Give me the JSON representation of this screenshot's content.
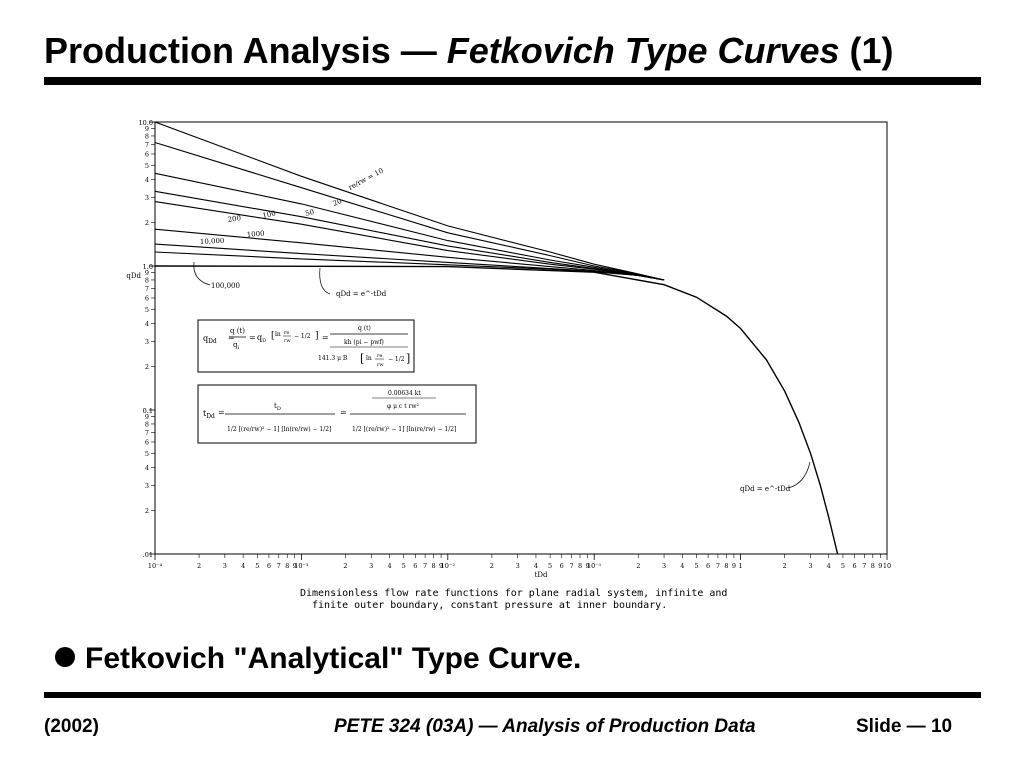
{
  "slide": {
    "title_main": "Production Analysis — ",
    "title_italic": "Fetkovich Type Curves",
    "title_suffix": " (1)",
    "bullet": "Fetkovich \"Analytical\" Type Curve.",
    "footer_left": "(2002)",
    "footer_center": "PETE 324 (03A) — Analysis of Production Data",
    "footer_right": "Slide — 10"
  },
  "figure": {
    "caption_line1": "Dimensionless flow rate functions for plane radial system, infinite and",
    "caption_line2": "finite outer boundary, constant pressure at inner boundary.",
    "eq1": {
      "lhs": "q",
      "lhs_sub": "Dd",
      "q_t": "q (t)",
      "q_i": "q",
      "q_i_sub": "i",
      "q_D": "q",
      "q_D_sub": "D",
      "ln": "ln",
      "re": "re",
      "rw": "rw",
      "minus_half": "− 1/2",
      "num": "q (t)",
      "den": "kh (pi − pwf)",
      "den2": "141.3 μ B"
    },
    "eq2": {
      "lhs": "t",
      "lhs_sub": "Dd",
      "tD": "t",
      "tD_sub": "D",
      "num": "0.00634 kt",
      "den": "φ μ c",
      "den_tail": "t rw²",
      "half": "1/2",
      "re": "re",
      "rw": "rw",
      "ln": "ln",
      "minus_one": "− 1"
    }
  },
  "chart_data": {
    "type": "line",
    "xlabel": "tDd",
    "ylabel": "qDd",
    "xscale": "log",
    "yscale": "log",
    "xlim": [
      0.0001,
      10
    ],
    "ylim": [
      0.01,
      10
    ],
    "x_major_ticks": [
      "10⁻⁴",
      "10⁻³",
      "10⁻²",
      "10⁻¹",
      "1",
      "10"
    ],
    "y_major_ticks": [
      "10.0",
      "1.0",
      "0.1",
      ".01"
    ],
    "minor_tick_labels": [
      "2",
      "3",
      "4",
      "5",
      "6",
      "7",
      "8",
      "9"
    ],
    "series": [
      {
        "name": "re/rw = 10",
        "x": [
          0.0001,
          0.001,
          0.01,
          0.05,
          0.1,
          0.2,
          0.3
        ],
        "y": [
          10,
          4.2,
          1.9,
          1.25,
          1.03,
          0.88,
          0.8
        ]
      },
      {
        "name": "20",
        "x": [
          0.0001,
          0.001,
          0.01,
          0.05,
          0.1,
          0.2,
          0.3
        ],
        "y": [
          7.2,
          3.5,
          1.7,
          1.18,
          1.0,
          0.88,
          0.8
        ]
      },
      {
        "name": "50",
        "x": [
          0.0001,
          0.001,
          0.01,
          0.05,
          0.1,
          0.2,
          0.3
        ],
        "y": [
          4.4,
          2.7,
          1.5,
          1.1,
          0.98,
          0.87,
          0.8
        ]
      },
      {
        "name": "100",
        "x": [
          0.0001,
          0.001,
          0.01,
          0.05,
          0.1,
          0.2,
          0.3
        ],
        "y": [
          3.3,
          2.2,
          1.38,
          1.06,
          0.96,
          0.87,
          0.8
        ]
      },
      {
        "name": "200",
        "x": [
          0.0001,
          0.001,
          0.01,
          0.05,
          0.1,
          0.2,
          0.3
        ],
        "y": [
          2.8,
          1.95,
          1.28,
          1.03,
          0.95,
          0.86,
          0.8
        ]
      },
      {
        "name": "1000",
        "x": [
          0.0001,
          0.001,
          0.01,
          0.05,
          0.1,
          0.2,
          0.3
        ],
        "y": [
          1.8,
          1.45,
          1.15,
          0.99,
          0.93,
          0.86,
          0.8
        ]
      },
      {
        "name": "10,000",
        "x": [
          0.0001,
          0.001,
          0.01,
          0.05,
          0.1,
          0.2,
          0.3
        ],
        "y": [
          1.42,
          1.22,
          1.06,
          0.96,
          0.92,
          0.86,
          0.8
        ]
      },
      {
        "name": "100,000",
        "x": [
          0.0001,
          0.001,
          0.01,
          0.05,
          0.1,
          0.2,
          0.3
        ],
        "y": [
          1.25,
          1.12,
          1.02,
          0.95,
          0.91,
          0.86,
          0.8
        ]
      },
      {
        "name": "qDd = e^-tDd",
        "x": [
          0.0001,
          0.01,
          0.1,
          0.3,
          0.5,
          0.8,
          1.0,
          1.5,
          2.0,
          2.5,
          3.0,
          3.5,
          4.0,
          4.6
        ],
        "y": [
          1.0,
          0.99,
          0.905,
          0.741,
          0.607,
          0.449,
          0.368,
          0.223,
          0.135,
          0.082,
          0.05,
          0.03,
          0.018,
          0.01
        ]
      }
    ],
    "annotations": [
      "re/rw = 10",
      "20",
      "50",
      "100",
      "200",
      "1000",
      "10,000",
      "100,000",
      "qDd = e^-tDd",
      "qDd = e^-tDd"
    ]
  }
}
